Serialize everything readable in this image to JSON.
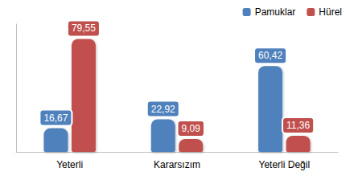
{
  "chart_data": {
    "type": "bar",
    "categories": [
      "Yeterli",
      "Kararsızım",
      "Yeterli Değil"
    ],
    "series": [
      {
        "name": "Pamuklar",
        "color": "#4f81bd",
        "values": [
          16.67,
          22.92,
          60.42
        ],
        "value_labels": [
          "16,67",
          "22,92",
          "60,42"
        ]
      },
      {
        "name": "Hürel",
        "color": "#c0504d",
        "values": [
          79.55,
          9.09,
          11.36
        ],
        "value_labels": [
          "79,55",
          "9,09",
          "11,36"
        ]
      }
    ],
    "ylim": [
      0,
      90
    ],
    "yticks": [],
    "grid": false,
    "legend": "top-right",
    "data_labels": true,
    "tick_labels": "x"
  }
}
